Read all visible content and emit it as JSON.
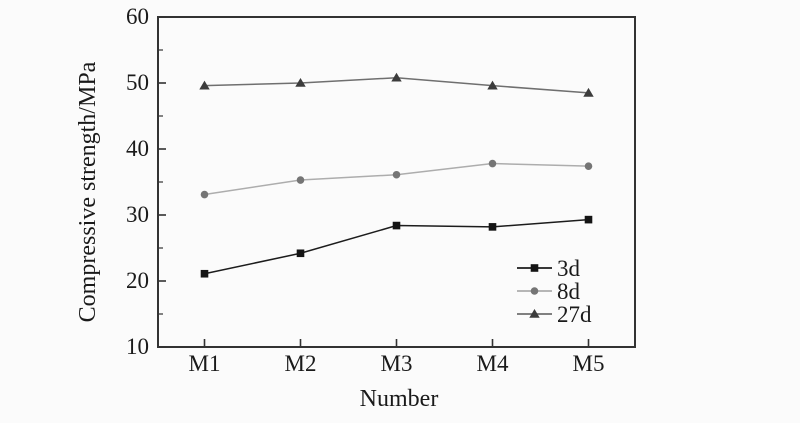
{
  "figure": {
    "background": "#fbfbfb",
    "frame_color": "#333333",
    "text_color": "#1a1a1a"
  },
  "chart_data": {
    "type": "line",
    "title": "",
    "xlabel": "Number",
    "ylabel": "Compressive strength/MPa",
    "categories": [
      "M1",
      "M2",
      "M3",
      "M4",
      "M5"
    ],
    "series": [
      {
        "name": "3d",
        "marker": "square",
        "values": [
          21.1,
          24.2,
          28.4,
          28.2,
          29.3
        ],
        "line_color": "#1c1c1c",
        "marker_color": "#141414"
      },
      {
        "name": "8d",
        "marker": "circle",
        "values": [
          33.1,
          35.3,
          36.1,
          37.8,
          37.4
        ],
        "line_color": "#adadad",
        "marker_color": "#757575"
      },
      {
        "name": "27d",
        "marker": "triangle",
        "values": [
          49.6,
          50.0,
          50.8,
          49.6,
          48.5
        ],
        "line_color": "#6f6f6f",
        "marker_color": "#3c3c3c"
      }
    ],
    "ylim": [
      10,
      60
    ],
    "y_major_step": 10,
    "y_minor_step": 5,
    "grid": false,
    "legend_position": "inside-lower-right"
  }
}
